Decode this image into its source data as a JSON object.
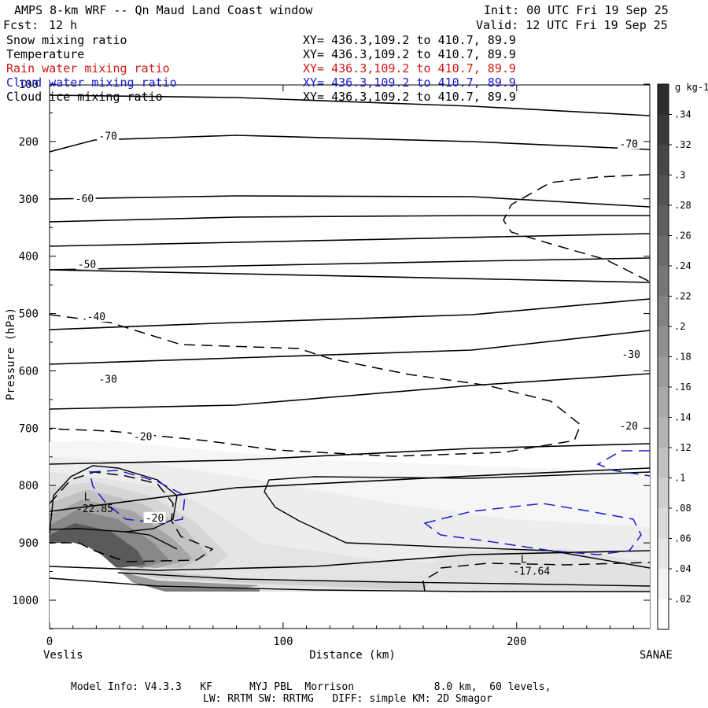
{
  "header": {
    "title": "AMPS 8-km WRF -- Qn Maud Land Coast window",
    "init": "Init: 00 UTC Fri 19 Sep 25",
    "fcst_label": "Fcst:",
    "fcst_value": "12 h",
    "valid": "Valid: 12 UTC Fri 19 Sep 25"
  },
  "legend": [
    {
      "name": "Snow mixing ratio",
      "xy": "XY= 436.3,109.2 to 410.7, 89.9",
      "color": "#000000"
    },
    {
      "name": "Temperature",
      "xy": "XY= 436.3,109.2 to 410.7, 89.9",
      "color": "#000000"
    },
    {
      "name": "Rain water mixing ratio",
      "xy": "XY= 436.3,109.2 to 410.7, 89.9",
      "color": "#d01818"
    },
    {
      "name": "Cloud water mixing ratio",
      "xy": "XY= 436.3,109.2 to 410.7, 89.9",
      "color": "#1a1ad0"
    },
    {
      "name": "Cloud ice mixing ratio",
      "xy": "XY= 436.3,109.2 to 410.7, 89.9",
      "color": "#000000"
    }
  ],
  "footer": {
    "line1": "Model Info: V4.3.3   KF      MYJ PBL  Morrison             8.0 km,  60 levels,",
    "line2": "LW: RRTM SW: RRTMG   DIFF: simple KM: 2D Smagor"
  },
  "chart_data": {
    "type": "cross-section",
    "xlabel": "Distance (km)",
    "ylabel": "Pressure (hPa)",
    "xlim": [
      0,
      257
    ],
    "ylim": [
      1050,
      100
    ],
    "x_ticks": [
      0,
      100,
      200
    ],
    "y_ticks": [
      100,
      200,
      300,
      400,
      500,
      600,
      700,
      800,
      900,
      1000
    ],
    "left_endpoint": "Veslis",
    "right_endpoint": "SANAE",
    "colorbar": {
      "unit": "g kg-1",
      "levels": [
        0.02,
        0.04,
        0.06,
        0.08,
        0.1,
        0.12,
        0.14,
        0.16,
        0.18,
        0.2,
        0.22,
        0.24,
        0.26,
        0.28,
        0.3,
        0.32,
        0.34
      ],
      "labels": [
        ".02",
        ".04",
        ".06",
        ".08",
        ".1",
        ".12",
        ".14",
        ".16",
        ".18",
        ".2",
        ".22",
        ".24",
        ".26",
        ".28",
        ".3",
        ".32",
        ".34"
      ]
    },
    "temperature_contour_labels": [
      {
        "text": "-70",
        "x": 25,
        "p": 191
      },
      {
        "text": "-70",
        "x": 248,
        "p": 205
      },
      {
        "text": "-60",
        "x": 15,
        "p": 300
      },
      {
        "text": "-50",
        "x": 16,
        "p": 415
      },
      {
        "text": "-40",
        "x": 20,
        "p": 506
      },
      {
        "text": "-30",
        "x": 25,
        "p": 615
      },
      {
        "text": "-30",
        "x": 249,
        "p": 572
      },
      {
        "text": "-20",
        "x": 40,
        "p": 715
      },
      {
        "text": "-20",
        "x": 248,
        "p": 697
      },
      {
        "text": "-20",
        "x": 45,
        "p": 857
      }
    ],
    "temperature_isotherms_p_left": [
      121,
      193,
      253,
      340,
      380,
      425,
      475,
      525,
      590,
      650,
      720
    ],
    "temperature_isotherms_p_right": [
      147,
      190,
      264,
      297,
      359,
      420,
      450,
      475,
      564,
      610,
      700
    ],
    "extrema": [
      {
        "label": "L",
        "value": "-22.85",
        "x": 16,
        "p": 826
      },
      {
        "label": "L",
        "value": "-17.64",
        "x": 203,
        "p": 935
      }
    ]
  }
}
